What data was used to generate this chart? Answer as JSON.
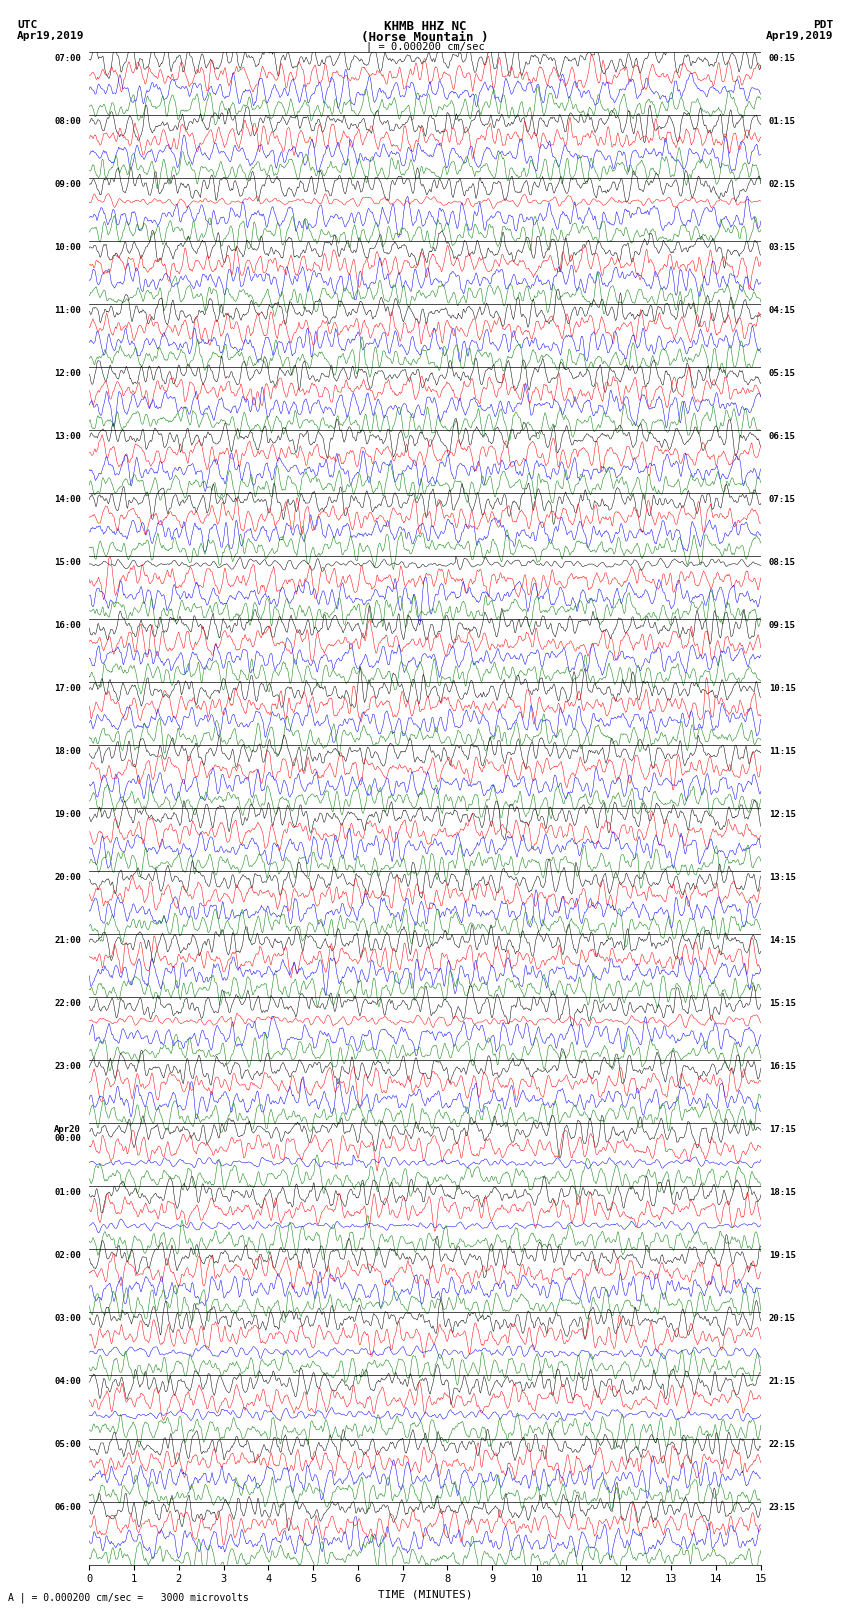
{
  "title_line1": "KHMB HHZ NC",
  "title_line2": "(Horse Mountain )",
  "title_line3": "| = 0.000200 cm/sec",
  "xlabel": "TIME (MINUTES)",
  "footnote": "A | = 0.000200 cm/sec =   3000 microvolts",
  "left_times": [
    "07:00",
    "08:00",
    "09:00",
    "10:00",
    "11:00",
    "12:00",
    "13:00",
    "14:00",
    "15:00",
    "16:00",
    "17:00",
    "18:00",
    "19:00",
    "20:00",
    "21:00",
    "22:00",
    "23:00",
    "Apr20\n00:00",
    "01:00",
    "02:00",
    "03:00",
    "04:00",
    "05:00",
    "06:00"
  ],
  "right_times": [
    "00:15",
    "01:15",
    "02:15",
    "03:15",
    "04:15",
    "05:15",
    "06:15",
    "07:15",
    "08:15",
    "09:15",
    "10:15",
    "11:15",
    "12:15",
    "13:15",
    "14:15",
    "15:15",
    "16:15",
    "17:15",
    "18:15",
    "19:15",
    "20:15",
    "21:15",
    "22:15",
    "23:15"
  ],
  "colors": [
    "black",
    "red",
    "blue",
    "green"
  ],
  "n_hours": 24,
  "x_min": 0,
  "x_max": 15,
  "xticks": [
    0,
    1,
    2,
    3,
    4,
    5,
    6,
    7,
    8,
    9,
    10,
    11,
    12,
    13,
    14,
    15
  ],
  "bg_color": "white"
}
